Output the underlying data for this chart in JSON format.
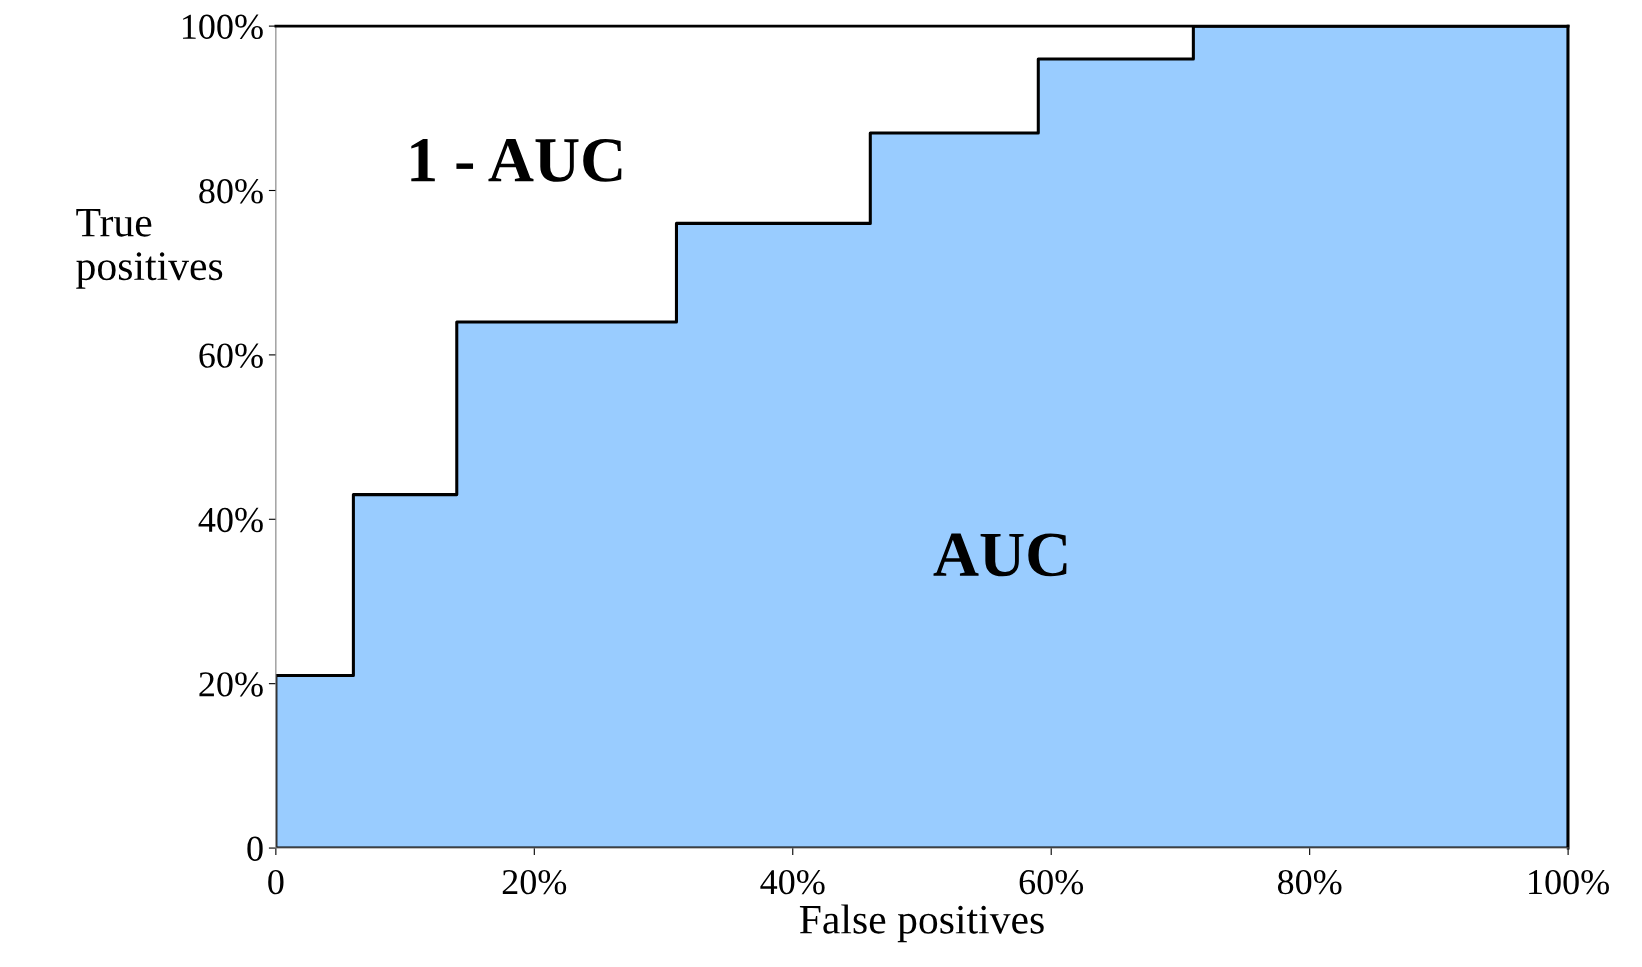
{
  "chart_data": {
    "type": "area",
    "xlabel": "False positives",
    "ylabel": "True\npositives",
    "x": [
      0,
      6,
      14,
      31,
      46,
      59,
      71,
      100
    ],
    "series": [
      {
        "color": "#99ccff",
        "values": [
          21,
          43,
          64,
          76,
          87,
          96,
          100,
          100
        ]
      }
    ],
    "xlim": [
      0,
      100
    ],
    "ylim": [
      0,
      100
    ],
    "xticks": [
      0,
      {
        "value": 20,
        "label": "20%"
      },
      {
        "value": 40,
        "label": "40%"
      },
      {
        "value": 60,
        "label": "60%"
      },
      {
        "value": 80,
        "label": "80%"
      },
      {
        "value": 100,
        "label": "100%"
      }
    ],
    "yticks": [
      0,
      {
        "value": 20,
        "label": "20%"
      },
      {
        "value": 40,
        "label": "40%"
      },
      {
        "value": 60,
        "label": "60%"
      },
      {
        "value": 80,
        "label": "80%"
      },
      {
        "value": 100,
        "label": "100%"
      }
    ],
    "annotations": [
      "1 - AUC",
      "AUC"
    ],
    "grid": false,
    "legend": false
  }
}
